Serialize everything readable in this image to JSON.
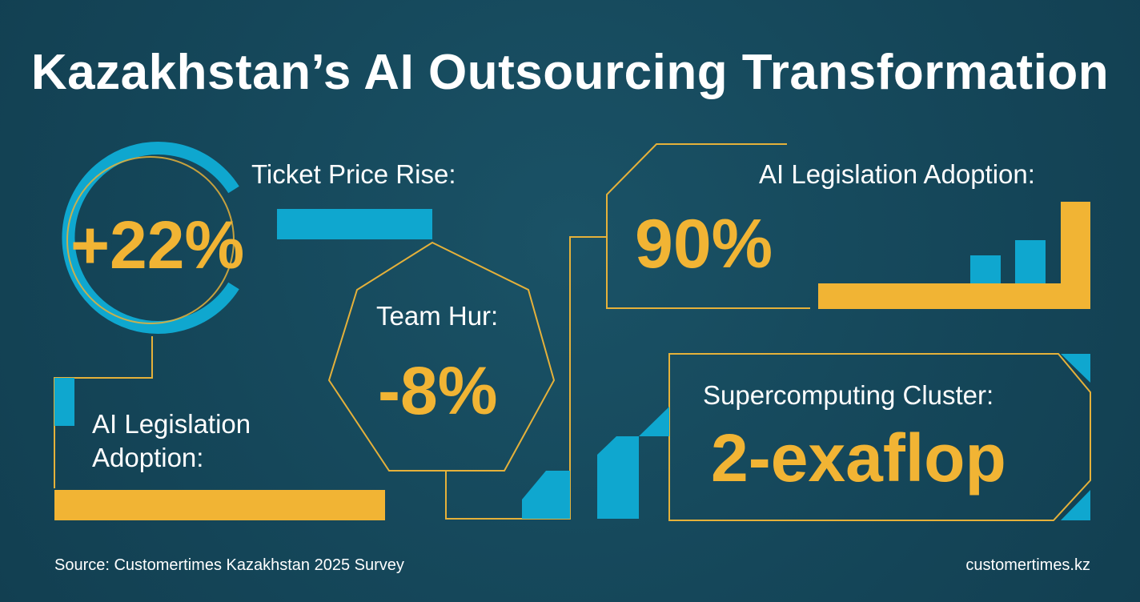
{
  "title": "Kazakhstan’s AI Outsourcing Transformation",
  "colors": {
    "background": "#15475a",
    "accent_blue": "#0fa7cf",
    "accent_gold": "#f1b434",
    "text": "#ffffff"
  },
  "stats": {
    "ticket_price": {
      "label": "Ticket Price Rise:",
      "value": "+22%"
    },
    "team_hur": {
      "label": "Team Hur:",
      "value": "-8%"
    },
    "legislation_left": {
      "label_line1": "AI Legislation",
      "label_line2": "Adoption:"
    },
    "legislation_right": {
      "label": "AI Legislation Adoption:",
      "value": "90%"
    },
    "supercomputing": {
      "label": "Supercomputing Cluster:",
      "value": "2-exaflop"
    }
  },
  "footer": {
    "source": "Source: Customertimes Kazakhstan 2025 Survey",
    "site": "customertimes.kz"
  }
}
